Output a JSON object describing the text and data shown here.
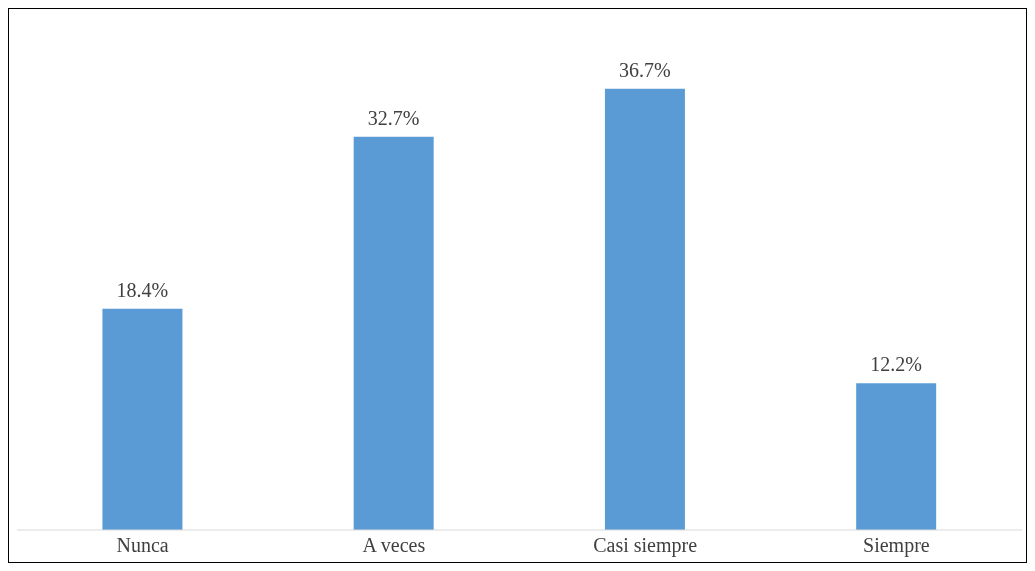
{
  "chart_data": {
    "type": "bar",
    "categories": [
      "Nunca",
      "A veces",
      "Casi siempre",
      "Siempre"
    ],
    "values": [
      18.4,
      32.7,
      36.7,
      12.2
    ],
    "color": "#5b9bd5",
    "value_labels": [
      "18.4%",
      "32.7%",
      "36.7%",
      "12.2%"
    ]
  }
}
